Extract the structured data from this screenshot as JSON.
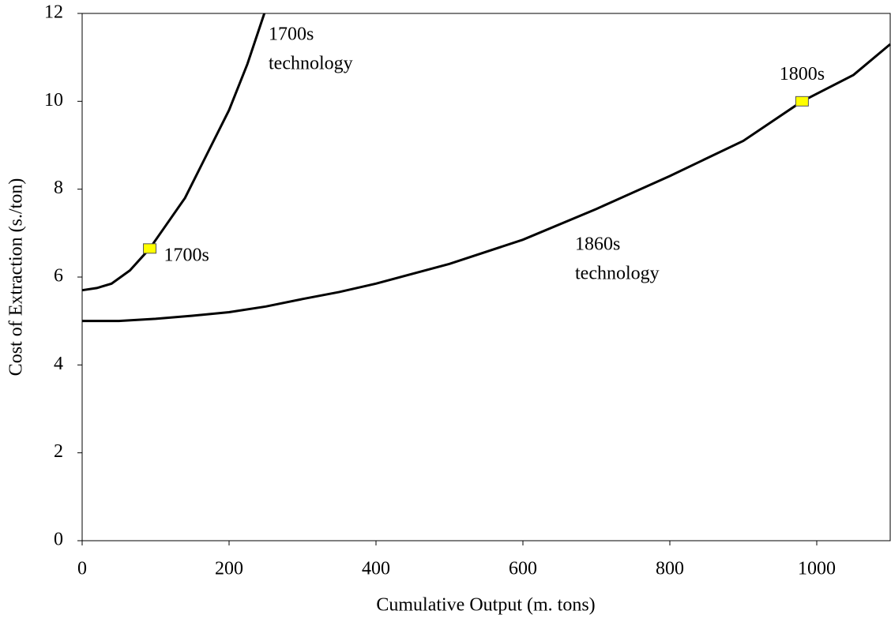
{
  "chart_data": {
    "type": "line",
    "xlabel": "Cumulative Output (m. tons)",
    "ylabel": "Cost of Extraction (s./ton)",
    "xlim": [
      0,
      1100
    ],
    "ylim": [
      0,
      12
    ],
    "xticks": [
      0,
      200,
      400,
      600,
      800,
      1000
    ],
    "yticks": [
      0,
      2,
      4,
      6,
      8,
      10,
      12
    ],
    "series": [
      {
        "label_lines": [
          "1700s",
          "technology"
        ],
        "color": "#000000",
        "x": [
          0,
          20,
          40,
          65,
          92,
          115,
          140,
          170,
          200,
          225,
          248
        ],
        "values": [
          5.7,
          5.75,
          5.85,
          6.15,
          6.65,
          7.2,
          7.8,
          8.8,
          9.8,
          10.85,
          12
        ]
      },
      {
        "label_lines": [
          "1860s",
          "technology"
        ],
        "color": "#000000",
        "x": [
          0,
          50,
          100,
          150,
          200,
          250,
          300,
          350,
          400,
          500,
          600,
          700,
          800,
          900,
          980,
          1050,
          1100
        ],
        "values": [
          5,
          5.0,
          5.05,
          5.12,
          5.2,
          5.33,
          5.5,
          5.66,
          5.85,
          6.3,
          6.85,
          7.55,
          8.3,
          9.1,
          10,
          10.6,
          11.3
        ]
      }
    ],
    "points": [
      {
        "label": "1700s",
        "x": 92,
        "value": 6.65,
        "color": "#ffff00"
      },
      {
        "label": "1800s",
        "x": 980,
        "value": 10,
        "color": "#ffff00"
      }
    ]
  }
}
